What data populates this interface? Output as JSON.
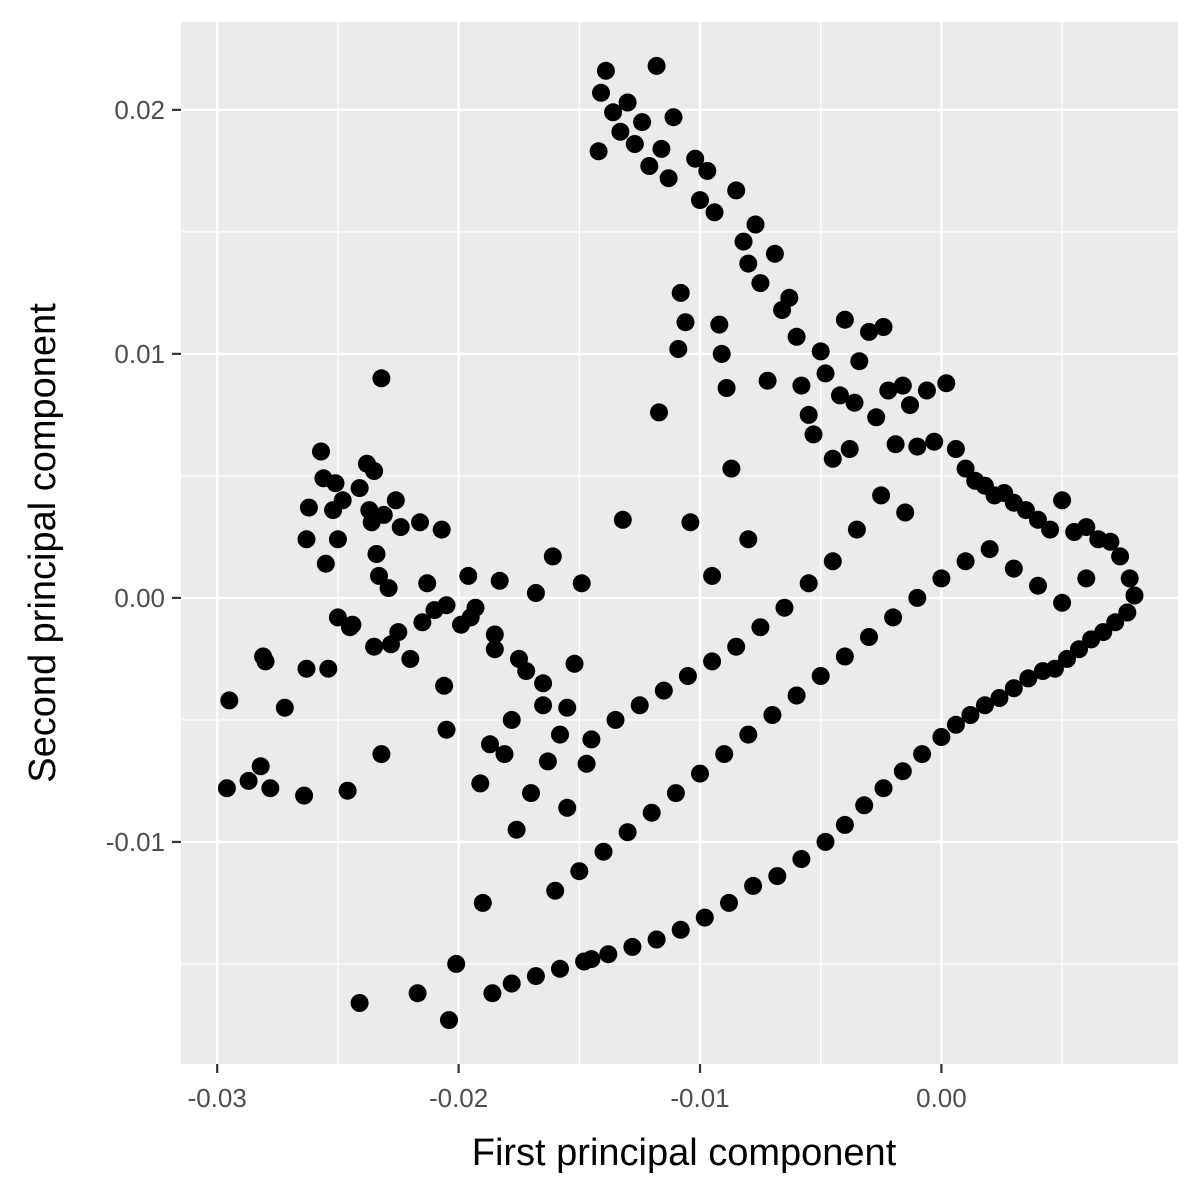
{
  "chart_data": {
    "type": "scatter",
    "title": "",
    "xlabel": "First principal component",
    "ylabel": "Second principal component",
    "xlim": [
      -0.0315,
      0.0098
    ],
    "ylim": [
      -0.0191,
      0.0236
    ],
    "x_ticks": [
      -0.03,
      -0.02,
      -0.01,
      0.0
    ],
    "x_tick_labels": [
      "-0.03",
      "-0.02",
      "-0.01",
      "0.00"
    ],
    "y_ticks": [
      -0.01,
      0.0,
      0.01,
      0.02
    ],
    "y_tick_labels": [
      "-0.01",
      "0.00",
      "0.01",
      "0.02"
    ],
    "grid": true,
    "legend": "none",
    "colors": {
      "panel": "#ebebeb",
      "grid": "#ffffff",
      "points": "#000000",
      "tick_text": "#4d4d4d",
      "tick_mark": "#333333"
    },
    "series": [
      {
        "values": [
          [
            -0.0296,
            -0.0078
          ],
          [
            -0.0295,
            -0.0042
          ],
          [
            -0.0287,
            -0.0075
          ],
          [
            -0.0282,
            -0.0069
          ],
          [
            -0.0281,
            -0.0024
          ],
          [
            -0.028,
            -0.0026
          ],
          [
            -0.0278,
            -0.0078
          ],
          [
            -0.0272,
            -0.0045
          ],
          [
            -0.0264,
            -0.0081
          ],
          [
            -0.0263,
            -0.0029
          ],
          [
            -0.0263,
            0.0024
          ],
          [
            -0.0262,
            0.0037
          ],
          [
            -0.0257,
            0.006
          ],
          [
            -0.0256,
            0.0049
          ],
          [
            -0.0255,
            0.0014
          ],
          [
            -0.0254,
            -0.0029
          ],
          [
            -0.0252,
            0.0036
          ],
          [
            -0.0251,
            0.0047
          ],
          [
            -0.025,
            0.0024
          ],
          [
            -0.0248,
            0.004
          ],
          [
            -0.0246,
            -0.0079
          ],
          [
            -0.0244,
            -0.0011
          ],
          [
            -0.0241,
            0.0045
          ],
          [
            -0.0241,
            -0.0166
          ],
          [
            -0.0238,
            0.0055
          ],
          [
            -0.0237,
            0.0036
          ],
          [
            -0.0236,
            0.0031
          ],
          [
            -0.0235,
            0.0052
          ],
          [
            -0.0234,
            0.0018
          ],
          [
            -0.0233,
            0.0009
          ],
          [
            -0.0232,
            -0.0064
          ],
          [
            -0.0232,
            0.009
          ],
          [
            -0.0231,
            0.0034
          ],
          [
            -0.0229,
            0.0004
          ],
          [
            -0.0228,
            -0.0019
          ],
          [
            -0.0226,
            0.004
          ],
          [
            -0.0224,
            0.0029
          ],
          [
            -0.022,
            -0.0025
          ],
          [
            -0.0216,
            0.0031
          ],
          [
            -0.0217,
            -0.0162
          ],
          [
            -0.0213,
            0.0006
          ],
          [
            -0.021,
            -0.0005
          ],
          [
            -0.0207,
            0.0028
          ],
          [
            -0.0206,
            -0.0036
          ],
          [
            -0.0205,
            -0.0054
          ],
          [
            -0.0204,
            -0.0173
          ],
          [
            -0.0201,
            -0.015
          ],
          [
            -0.0199,
            -0.0011
          ],
          [
            -0.0196,
            0.0009
          ],
          [
            -0.0193,
            -0.0004
          ],
          [
            -0.0191,
            -0.0076
          ],
          [
            -0.019,
            -0.0125
          ],
          [
            -0.0187,
            -0.006
          ],
          [
            -0.0185,
            -0.0021
          ],
          [
            -0.0183,
            0.0007
          ],
          [
            -0.0181,
            -0.0064
          ],
          [
            -0.0178,
            -0.005
          ],
          [
            -0.0176,
            -0.0095
          ],
          [
            -0.0172,
            -0.003
          ],
          [
            -0.017,
            -0.008
          ],
          [
            -0.0168,
            0.0002
          ],
          [
            -0.0165,
            -0.0044
          ],
          [
            -0.0163,
            -0.0067
          ],
          [
            -0.0161,
            0.0017
          ],
          [
            -0.0158,
            -0.0056
          ],
          [
            -0.0155,
            -0.0086
          ],
          [
            -0.0152,
            -0.0027
          ],
          [
            -0.0149,
            0.0006
          ],
          [
            -0.0147,
            -0.0068
          ],
          [
            -0.0145,
            -0.0148
          ],
          [
            -0.0142,
            0.0183
          ],
          [
            -0.0141,
            0.0207
          ],
          [
            -0.0139,
            0.0216
          ],
          [
            -0.0136,
            0.0199
          ],
          [
            -0.0133,
            0.0191
          ],
          [
            -0.013,
            0.0203
          ],
          [
            -0.0127,
            0.0186
          ],
          [
            -0.0124,
            0.0195
          ],
          [
            -0.0121,
            0.0177
          ],
          [
            -0.0118,
            0.0218
          ],
          [
            -0.0116,
            0.0184
          ],
          [
            -0.0113,
            0.0172
          ],
          [
            -0.0111,
            0.0197
          ],
          [
            -0.0109,
            0.0102
          ],
          [
            -0.0108,
            0.0125
          ],
          [
            -0.0106,
            0.0113
          ],
          [
            -0.0104,
            0.0031
          ],
          [
            -0.0102,
            0.018
          ],
          [
            -0.01,
            0.0163
          ],
          [
            -0.0097,
            0.0175
          ],
          [
            -0.0094,
            0.0158
          ],
          [
            -0.0092,
            0.0112
          ],
          [
            -0.0091,
            0.01
          ],
          [
            -0.0089,
            0.0086
          ],
          [
            -0.0087,
            0.0053
          ],
          [
            -0.0085,
            0.0167
          ],
          [
            -0.0082,
            0.0146
          ],
          [
            -0.008,
            0.0137
          ],
          [
            -0.0077,
            0.0153
          ],
          [
            -0.0075,
            0.0129
          ],
          [
            -0.0072,
            0.0089
          ],
          [
            -0.0069,
            0.0141
          ],
          [
            -0.0066,
            0.0118
          ],
          [
            -0.0063,
            0.0123
          ],
          [
            -0.006,
            0.0107
          ],
          [
            -0.0058,
            0.0087
          ],
          [
            -0.0055,
            0.0075
          ],
          [
            -0.0053,
            0.0067
          ],
          [
            -0.005,
            0.0101
          ],
          [
            -0.0048,
            0.0092
          ],
          [
            -0.0045,
            0.0057
          ],
          [
            -0.0042,
            0.0083
          ],
          [
            -0.004,
            0.0114
          ],
          [
            -0.0038,
            0.0061
          ],
          [
            -0.0036,
            0.008
          ],
          [
            -0.0034,
            0.0097
          ],
          [
            -0.003,
            0.0109
          ],
          [
            -0.0027,
            0.0074
          ],
          [
            -0.0024,
            0.0111
          ],
          [
            -0.0022,
            0.0085
          ],
          [
            -0.0019,
            0.0063
          ],
          [
            -0.0016,
            0.0087
          ],
          [
            -0.0013,
            0.0079
          ],
          [
            -0.001,
            0.0062
          ],
          [
            -0.0006,
            0.0085
          ],
          [
            -0.0003,
            0.0064
          ],
          [
            0.0002,
            0.0088
          ],
          [
            0.0006,
            0.0061
          ],
          [
            0.001,
            0.0053
          ],
          [
            0.0014,
            0.0048
          ],
          [
            0.0018,
            0.0046
          ],
          [
            0.0022,
            0.0042
          ],
          [
            0.0026,
            0.0043
          ],
          [
            0.003,
            0.0039
          ],
          [
            0.0035,
            0.0036
          ],
          [
            0.004,
            0.0032
          ],
          [
            0.0045,
            0.0028
          ],
          [
            0.005,
            0.004
          ],
          [
            0.0055,
            0.0027
          ],
          [
            0.006,
            0.0029
          ],
          [
            0.0065,
            0.0024
          ],
          [
            0.007,
            0.0023
          ],
          [
            0.0074,
            0.0017
          ],
          [
            0.0078,
            0.0008
          ],
          [
            0.008,
            0.0001
          ],
          [
            0.0077,
            -0.0006
          ],
          [
            0.0072,
            -0.001
          ],
          [
            0.0067,
            -0.0014
          ],
          [
            0.0062,
            -0.0017
          ],
          [
            0.0057,
            -0.0021
          ],
          [
            0.0052,
            -0.0025
          ],
          [
            0.0047,
            -0.0029
          ],
          [
            0.0042,
            -0.003
          ],
          [
            0.0036,
            -0.0033
          ],
          [
            0.003,
            -0.0037
          ],
          [
            0.0024,
            -0.0041
          ],
          [
            0.0018,
            -0.0044
          ],
          [
            0.0012,
            -0.0048
          ],
          [
            0.0006,
            -0.0052
          ],
          [
            0.0,
            -0.0057
          ],
          [
            -0.0008,
            -0.0064
          ],
          [
            -0.0016,
            -0.0071
          ],
          [
            -0.0024,
            -0.0078
          ],
          [
            -0.0032,
            -0.0085
          ],
          [
            -0.004,
            -0.0093
          ],
          [
            -0.0048,
            -0.01
          ],
          [
            -0.0058,
            -0.0107
          ],
          [
            -0.0068,
            -0.0114
          ],
          [
            -0.0078,
            -0.0118
          ],
          [
            -0.0088,
            -0.0125
          ],
          [
            -0.0098,
            -0.0131
          ],
          [
            -0.0108,
            -0.0136
          ],
          [
            -0.0118,
            -0.014
          ],
          [
            -0.0128,
            -0.0143
          ],
          [
            -0.0138,
            -0.0146
          ],
          [
            -0.0148,
            -0.0149
          ],
          [
            -0.0158,
            -0.0152
          ],
          [
            -0.0168,
            -0.0155
          ],
          [
            -0.0178,
            -0.0158
          ],
          [
            -0.0186,
            -0.0162
          ],
          [
            -0.016,
            -0.012
          ],
          [
            -0.015,
            -0.0112
          ],
          [
            -0.014,
            -0.0104
          ],
          [
            -0.013,
            -0.0096
          ],
          [
            -0.012,
            -0.0088
          ],
          [
            -0.011,
            -0.008
          ],
          [
            -0.01,
            -0.0072
          ],
          [
            -0.009,
            -0.0064
          ],
          [
            -0.008,
            -0.0056
          ],
          [
            -0.007,
            -0.0048
          ],
          [
            -0.006,
            -0.004
          ],
          [
            -0.005,
            -0.0032
          ],
          [
            -0.004,
            -0.0024
          ],
          [
            -0.003,
            -0.0016
          ],
          [
            -0.002,
            -0.0008
          ],
          [
            -0.001,
            0.0
          ],
          [
            0.0,
            0.0008
          ],
          [
            0.001,
            0.0015
          ],
          [
            0.002,
            0.002
          ],
          [
            0.003,
            0.0012
          ],
          [
            0.004,
            0.0005
          ],
          [
            0.005,
            -0.0002
          ],
          [
            0.006,
            0.0008
          ],
          [
            -0.0015,
            0.0035
          ],
          [
            -0.0025,
            0.0042
          ],
          [
            -0.0035,
            0.0028
          ],
          [
            -0.0045,
            0.0015
          ],
          [
            -0.0055,
            0.0006
          ],
          [
            -0.0065,
            -0.0004
          ],
          [
            -0.0075,
            -0.0012
          ],
          [
            -0.0085,
            -0.002
          ],
          [
            -0.0095,
            -0.0026
          ],
          [
            -0.0105,
            -0.0032
          ],
          [
            -0.0115,
            -0.0038
          ],
          [
            -0.0125,
            -0.0044
          ],
          [
            -0.0135,
            -0.005
          ],
          [
            -0.0145,
            -0.0058
          ],
          [
            -0.0155,
            -0.0045
          ],
          [
            -0.0165,
            -0.0035
          ],
          [
            -0.0175,
            -0.0025
          ],
          [
            -0.0185,
            -0.0015
          ],
          [
            -0.0195,
            -0.0008
          ],
          [
            -0.0205,
            -0.0003
          ],
          [
            -0.0215,
            -0.001
          ],
          [
            -0.0225,
            -0.0014
          ],
          [
            -0.0235,
            -0.002
          ],
          [
            -0.0245,
            -0.0012
          ],
          [
            -0.025,
            -0.0008
          ],
          [
            -0.0132,
            0.0032
          ],
          [
            -0.0117,
            0.0076
          ],
          [
            -0.0095,
            0.0009
          ],
          [
            -0.008,
            0.0024
          ]
        ]
      }
    ]
  }
}
